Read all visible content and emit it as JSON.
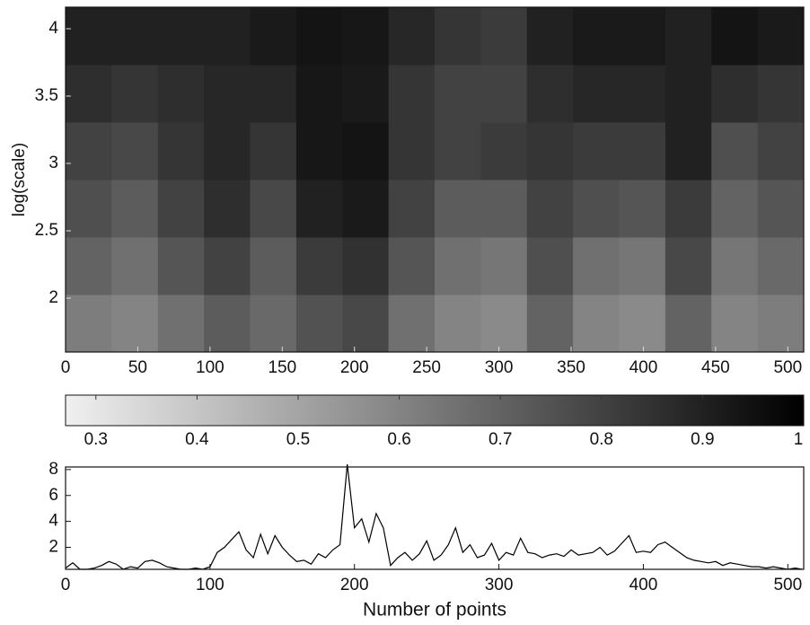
{
  "chart_data": [
    {
      "type": "heatmap",
      "ylabel": "log(scale)",
      "xlim": [
        0,
        511
      ],
      "ylim": [
        1.6,
        4.16
      ],
      "xticks": [
        0,
        50,
        100,
        150,
        200,
        250,
        300,
        350,
        400,
        450,
        500
      ],
      "yticks": [
        2,
        2.5,
        3,
        3.5,
        4
      ],
      "colormap": "gray_r",
      "clim": [
        0.27,
        1
      ],
      "cticks": [
        0.3,
        0.4,
        0.5,
        0.6,
        0.7,
        0.8,
        0.9,
        1
      ],
      "z": [
        [
          0.62,
          0.6,
          0.66,
          0.72,
          0.68,
          0.75,
          0.78,
          0.66,
          0.6,
          0.58,
          0.7,
          0.6,
          0.58,
          0.7,
          0.6,
          0.62
        ],
        [
          0.7,
          0.66,
          0.74,
          0.8,
          0.72,
          0.82,
          0.85,
          0.74,
          0.66,
          0.64,
          0.76,
          0.66,
          0.64,
          0.78,
          0.64,
          0.68
        ],
        [
          0.76,
          0.72,
          0.8,
          0.86,
          0.78,
          0.9,
          0.92,
          0.8,
          0.72,
          0.72,
          0.8,
          0.76,
          0.74,
          0.82,
          0.7,
          0.74
        ],
        [
          0.8,
          0.78,
          0.84,
          0.88,
          0.84,
          0.93,
          0.94,
          0.84,
          0.8,
          0.82,
          0.84,
          0.82,
          0.82,
          0.9,
          0.76,
          0.8
        ],
        [
          0.86,
          0.84,
          0.86,
          0.88,
          0.88,
          0.93,
          0.92,
          0.84,
          0.8,
          0.8,
          0.86,
          0.88,
          0.88,
          0.9,
          0.86,
          0.84
        ],
        [
          0.9,
          0.9,
          0.9,
          0.9,
          0.92,
          0.94,
          0.93,
          0.88,
          0.84,
          0.82,
          0.9,
          0.92,
          0.92,
          0.9,
          0.94,
          0.92
        ]
      ]
    },
    {
      "type": "line",
      "xlabel": "Number of points",
      "color": "#000000",
      "xlim": [
        0,
        511
      ],
      "ylim": [
        0.3,
        8.2
      ],
      "xticks": [
        0,
        100,
        200,
        300,
        400,
        500
      ],
      "yticks": [
        2,
        4,
        6,
        8
      ],
      "x": [
        0,
        5,
        10,
        15,
        20,
        25,
        30,
        35,
        40,
        45,
        50,
        55,
        60,
        65,
        70,
        75,
        80,
        85,
        90,
        95,
        100,
        105,
        110,
        115,
        120,
        125,
        130,
        135,
        140,
        145,
        150,
        155,
        160,
        165,
        170,
        175,
        180,
        185,
        190,
        195,
        200,
        205,
        210,
        215,
        220,
        225,
        230,
        235,
        240,
        245,
        250,
        255,
        260,
        265,
        270,
        275,
        280,
        285,
        290,
        295,
        300,
        305,
        310,
        315,
        320,
        325,
        330,
        335,
        340,
        345,
        350,
        355,
        360,
        365,
        370,
        375,
        380,
        385,
        390,
        395,
        400,
        405,
        410,
        415,
        420,
        425,
        430,
        435,
        440,
        445,
        450,
        455,
        460,
        465,
        470,
        475,
        480,
        485,
        490,
        495,
        500,
        505,
        510
      ],
      "values": [
        0.4,
        0.8,
        0.3,
        0.3,
        0.4,
        0.6,
        0.9,
        0.7,
        0.3,
        0.5,
        0.4,
        0.9,
        1.0,
        0.8,
        0.5,
        0.4,
        0.3,
        0.3,
        0.4,
        0.3,
        0.5,
        1.6,
        2.0,
        2.6,
        3.2,
        1.8,
        1.2,
        3.0,
        1.5,
        2.9,
        2.0,
        1.4,
        0.9,
        1.0,
        0.7,
        1.5,
        1.2,
        1.8,
        2.2,
        8.4,
        3.5,
        4.2,
        2.4,
        4.6,
        3.5,
        0.6,
        1.2,
        1.6,
        1.0,
        1.5,
        2.5,
        1.0,
        1.4,
        2.2,
        3.5,
        1.6,
        2.2,
        1.2,
        1.4,
        2.3,
        1.0,
        1.6,
        1.4,
        2.7,
        1.6,
        1.5,
        1.2,
        1.4,
        1.5,
        1.3,
        1.8,
        1.4,
        1.5,
        1.6,
        2.0,
        1.4,
        1.7,
        2.3,
        2.9,
        1.6,
        1.7,
        1.6,
        2.2,
        2.4,
        2.0,
        1.6,
        1.2,
        1.0,
        0.9,
        0.8,
        0.9,
        0.6,
        0.8,
        0.7,
        0.6,
        0.5,
        0.5,
        0.4,
        0.5,
        0.4,
        0.3,
        0.4,
        0.3
      ]
    }
  ]
}
